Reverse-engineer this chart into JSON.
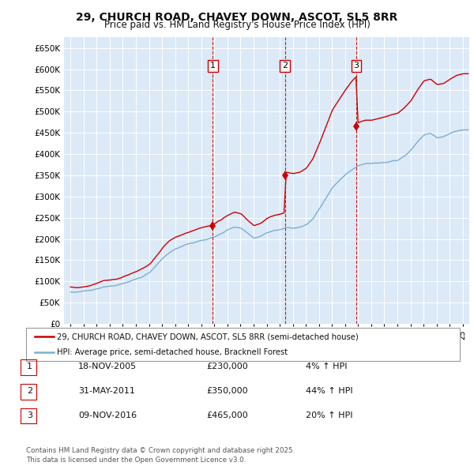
{
  "title": "29, CHURCH ROAD, CHAVEY DOWN, ASCOT, SL5 8RR",
  "subtitle": "Price paid vs. HM Land Registry's House Price Index (HPI)",
  "red_label": "29, CHURCH ROAD, CHAVEY DOWN, ASCOT, SL5 8RR (semi-detached house)",
  "blue_label": "HPI: Average price, semi-detached house, Bracknell Forest",
  "transactions": [
    {
      "num": 1,
      "date": "18-NOV-2005",
      "price": 230000,
      "pct": "4%",
      "direction": "↑",
      "x_year": 2005.88
    },
    {
      "num": 2,
      "date": "31-MAY-2011",
      "price": 350000,
      "pct": "44%",
      "direction": "↑",
      "x_year": 2011.41
    },
    {
      "num": 3,
      "date": "09-NOV-2016",
      "price": 465000,
      "pct": "20%",
      "direction": "↑",
      "x_year": 2016.86
    }
  ],
  "footer": "Contains HM Land Registry data © Crown copyright and database right 2025.\nThis data is licensed under the Open Government Licence v3.0.",
  "ylim": [
    0,
    675000
  ],
  "yticks": [
    0,
    50000,
    100000,
    150000,
    200000,
    250000,
    300000,
    350000,
    400000,
    450000,
    500000,
    550000,
    600000,
    650000
  ],
  "xlim_start": 1994.5,
  "xlim_end": 2025.5,
  "plot_bg": "#dce9f7",
  "grid_color": "#ffffff",
  "red_color": "#cc0000",
  "blue_color": "#7bafd4",
  "hpi_anchors": [
    [
      1995.0,
      75000
    ],
    [
      1995.5,
      74000
    ],
    [
      1996.0,
      76000
    ],
    [
      1996.5,
      78000
    ],
    [
      1997.0,
      82000
    ],
    [
      1997.5,
      87000
    ],
    [
      1998.0,
      88000
    ],
    [
      1998.5,
      90000
    ],
    [
      1999.0,
      94000
    ],
    [
      1999.5,
      99000
    ],
    [
      2000.0,
      105000
    ],
    [
      2000.5,
      112000
    ],
    [
      2001.0,
      120000
    ],
    [
      2001.5,
      135000
    ],
    [
      2002.0,
      152000
    ],
    [
      2002.5,
      165000
    ],
    [
      2003.0,
      173000
    ],
    [
      2003.5,
      178000
    ],
    [
      2004.0,
      183000
    ],
    [
      2004.5,
      188000
    ],
    [
      2005.0,
      192000
    ],
    [
      2005.5,
      194000
    ],
    [
      2006.0,
      200000
    ],
    [
      2006.5,
      208000
    ],
    [
      2007.0,
      218000
    ],
    [
      2007.5,
      224000
    ],
    [
      2008.0,
      220000
    ],
    [
      2008.5,
      208000
    ],
    [
      2009.0,
      196000
    ],
    [
      2009.5,
      200000
    ],
    [
      2010.0,
      210000
    ],
    [
      2010.5,
      215000
    ],
    [
      2011.0,
      218000
    ],
    [
      2011.5,
      222000
    ],
    [
      2012.0,
      220000
    ],
    [
      2012.5,
      222000
    ],
    [
      2013.0,
      228000
    ],
    [
      2013.5,
      242000
    ],
    [
      2014.0,
      265000
    ],
    [
      2014.5,
      290000
    ],
    [
      2015.0,
      315000
    ],
    [
      2015.5,
      330000
    ],
    [
      2016.0,
      345000
    ],
    [
      2016.5,
      358000
    ],
    [
      2017.0,
      368000
    ],
    [
      2017.5,
      372000
    ],
    [
      2018.0,
      372000
    ],
    [
      2018.5,
      375000
    ],
    [
      2019.0,
      378000
    ],
    [
      2019.5,
      382000
    ],
    [
      2020.0,
      385000
    ],
    [
      2020.5,
      395000
    ],
    [
      2021.0,
      408000
    ],
    [
      2021.5,
      428000
    ],
    [
      2022.0,
      445000
    ],
    [
      2022.5,
      448000
    ],
    [
      2023.0,
      438000
    ],
    [
      2023.5,
      440000
    ],
    [
      2024.0,
      448000
    ],
    [
      2024.5,
      455000
    ],
    [
      2025.0,
      458000
    ]
  ]
}
